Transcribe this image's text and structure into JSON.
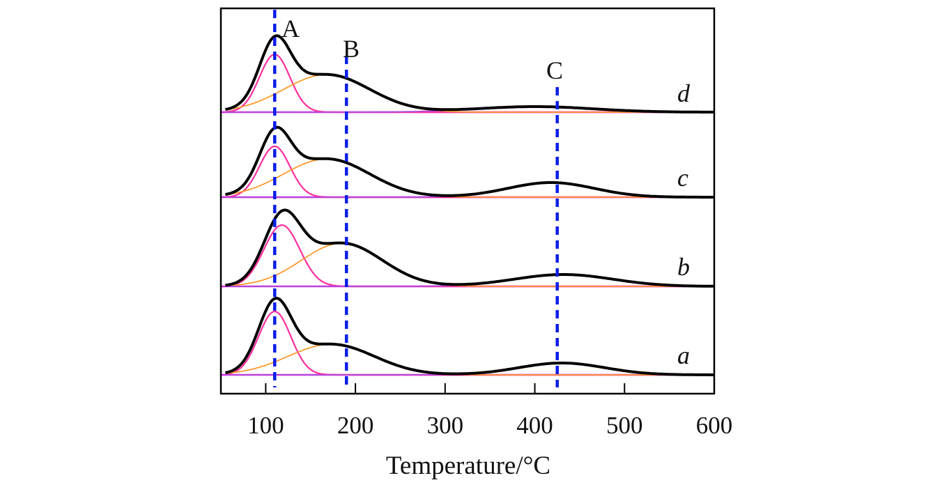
{
  "chart_data": {
    "type": "line",
    "title": "",
    "xlabel": "Temperature/°C",
    "ylabel": "",
    "xlim": [
      50,
      600
    ],
    "xticks": [
      100,
      200,
      300,
      400,
      500,
      600
    ],
    "grid": false,
    "y_units": "arbitrary (stacked, no y ticks)",
    "reference_lines": [
      {
        "label": "A",
        "x": 110
      },
      {
        "label": "B",
        "x": 190
      },
      {
        "label": "C",
        "x": 425
      }
    ],
    "series": [
      {
        "name": "d",
        "components": [
          {
            "peak": "A",
            "center": 110,
            "height": 83,
            "sigma": 17
          },
          {
            "peak": "B",
            "center": 168,
            "height": 54,
            "sigma": 48
          },
          {
            "peak": "C",
            "center": 400,
            "height": 8,
            "sigma": 65
          }
        ]
      },
      {
        "name": "c",
        "components": [
          {
            "peak": "A",
            "center": 110,
            "height": 73,
            "sigma": 17
          },
          {
            "peak": "B",
            "center": 168,
            "height": 55,
            "sigma": 48
          },
          {
            "peak": "C",
            "center": 418,
            "height": 21,
            "sigma": 48
          }
        ]
      },
      {
        "name": "b",
        "components": [
          {
            "peak": "A",
            "center": 118,
            "height": 88,
            "sigma": 20
          },
          {
            "peak": "B",
            "center": 185,
            "height": 62,
            "sigma": 45
          },
          {
            "peak": "C",
            "center": 432,
            "height": 17,
            "sigma": 55
          }
        ]
      },
      {
        "name": "a",
        "components": [
          {
            "peak": "A",
            "center": 110,
            "height": 91,
            "sigma": 18
          },
          {
            "peak": "B",
            "center": 173,
            "height": 44,
            "sigma": 48
          },
          {
            "peak": "C",
            "center": 430,
            "height": 17,
            "sigma": 48
          }
        ]
      }
    ],
    "colors": {
      "total": "#000000",
      "peak_A": "#ff2d9e",
      "peak_B": "#ff9a2e",
      "peak_C": "#b04ad8",
      "baseline": "#dd22ee",
      "reference": "#0a1ee8"
    }
  }
}
